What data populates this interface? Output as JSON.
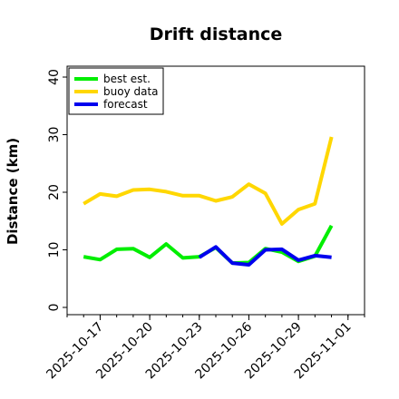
{
  "chart_data": {
    "type": "line",
    "title": "Drift distance",
    "xlabel": "",
    "ylabel": "Distance (km)",
    "ylim": [
      0,
      42
    ],
    "yticks": [
      0,
      10,
      20,
      30,
      40
    ],
    "xlim": [
      "2025-10-15",
      "2025-11-02"
    ],
    "xticks": [
      {
        "value": "2025-10-17",
        "label": "2025-10-17",
        "color": "#000000"
      },
      {
        "value": "2025-10-20",
        "label": "2025-10-20",
        "color": "#000000"
      },
      {
        "value": "2025-10-23",
        "label": "2025-10-23",
        "color": "#228b22"
      },
      {
        "value": "2025-10-26",
        "label": "2025-10-26",
        "color": "#000000"
      },
      {
        "value": "2025-10-29",
        "label": "2025-10-29",
        "color": "#000000"
      },
      {
        "value": "2025-11-01",
        "label": "2025-11-01",
        "color": "#000000"
      }
    ],
    "grid": false,
    "legend_position": "top-left",
    "series": [
      {
        "name": "best est.",
        "color": "#00ee00",
        "points": [
          [
            "2025-10-16",
            8.8
          ],
          [
            "2025-10-17",
            8.3
          ],
          [
            "2025-10-18",
            10.1
          ],
          [
            "2025-10-19",
            10.2
          ],
          [
            "2025-10-20",
            8.7
          ],
          [
            "2025-10-21",
            11.0
          ],
          [
            "2025-10-22",
            8.6
          ],
          [
            "2025-10-23",
            8.8
          ],
          [
            "2025-10-24",
            10.4
          ],
          [
            "2025-10-25",
            7.7
          ],
          [
            "2025-10-26",
            7.8
          ],
          [
            "2025-10-27",
            10.2
          ],
          [
            "2025-10-28",
            9.6
          ],
          [
            "2025-10-29",
            8.0
          ],
          [
            "2025-10-30",
            8.9
          ],
          [
            "2025-10-31",
            14.2
          ]
        ]
      },
      {
        "name": "buoy data",
        "color": "#ffd700",
        "points": [
          [
            "2025-10-16",
            18.0
          ],
          [
            "2025-10-17",
            19.7
          ],
          [
            "2025-10-18",
            19.3
          ],
          [
            "2025-10-19",
            20.4
          ],
          [
            "2025-10-20",
            20.5
          ],
          [
            "2025-10-21",
            20.1
          ],
          [
            "2025-10-22",
            19.4
          ],
          [
            "2025-10-23",
            19.4
          ],
          [
            "2025-10-24",
            18.5
          ],
          [
            "2025-10-25",
            19.2
          ],
          [
            "2025-10-26",
            21.4
          ],
          [
            "2025-10-27",
            19.8
          ],
          [
            "2025-10-28",
            14.5
          ],
          [
            "2025-10-29",
            17.0
          ],
          [
            "2025-10-30",
            18.0
          ],
          [
            "2025-10-31",
            29.6
          ]
        ]
      },
      {
        "name": "forecast",
        "color": "#0000ee",
        "points": [
          [
            "2025-10-23",
            8.7
          ],
          [
            "2025-10-24",
            10.5
          ],
          [
            "2025-10-25",
            7.7
          ],
          [
            "2025-10-26",
            7.4
          ],
          [
            "2025-10-27",
            10.0
          ],
          [
            "2025-10-28",
            10.1
          ],
          [
            "2025-10-29",
            8.2
          ],
          [
            "2025-10-30",
            9.0
          ],
          [
            "2025-10-31",
            8.7
          ]
        ]
      }
    ]
  }
}
